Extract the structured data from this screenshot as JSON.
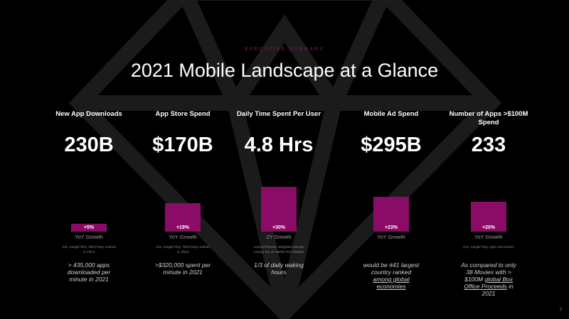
{
  "eyebrow": "EXECUTIVE SUMMARY",
  "title": "2021 Mobile Landscape at a Glance",
  "colors": {
    "accent": "#8a0c66",
    "background": "#000000"
  },
  "columns": [
    {
      "header": "New App Downloads",
      "value": "230B",
      "growth": "+5%",
      "growth_fraction": 0.15,
      "growth_label": "YoY Growth",
      "source": "iOS, Google Play, Third Party Android in China",
      "note": "> 435,000 apps downloaded per minute in 2021",
      "note_link": ""
    },
    {
      "header": "App Store Spend",
      "value": "$170B",
      "growth": "+19%",
      "growth_fraction": 0.6,
      "growth_label": "YoY Growth",
      "source": "iOS, Google Play, Third Party Android in China",
      "note": ">$320,000 spent per minute in 2021",
      "note_link": ""
    },
    {
      "header": "Daily Time Spent Per User",
      "value": "4.8 Hrs",
      "growth": "+30%",
      "growth_fraction": 0.95,
      "growth_label": "2Y Growth",
      "source": "Android Phones; Weighted Average Among Top 10 Mobile First Markets",
      "note": "1/3 of daily waking hours",
      "note_link": ""
    },
    {
      "header": "Mobile Ad Spend",
      "value": "$295B",
      "growth": "+23%",
      "growth_fraction": 0.74,
      "growth_label": "YoY Growth",
      "source": "",
      "note": "would be #41 largest country ranked ",
      "note_link": "among global economies"
    },
    {
      "header": "Number of Apps >$100M Spend",
      "value": "233",
      "growth": "+20%",
      "growth_fraction": 0.64,
      "growth_label": "YoY Growth",
      "source": "iOS, Google Play; Apps and Games",
      "note": "As compared to only 38 Movies with > $100M ",
      "note_link": "global Box Office Proceeds",
      "note_tail": " in 2021"
    }
  ],
  "page_number": "2"
}
